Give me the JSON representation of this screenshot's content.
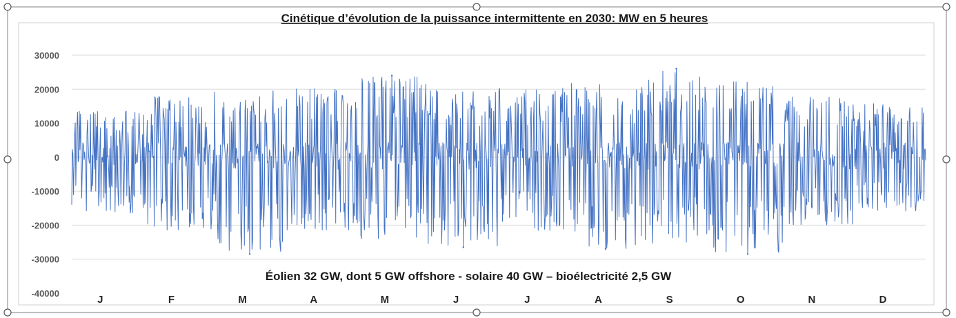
{
  "chart_data": {
    "type": "line",
    "title": "Cinétique d’évolution de la puissance intermittente en 2030: MW en 5 heures",
    "caption": "Éolien 32 GW, dont 5 GW offshore - solaire 40 GW – bioélectricité 2,5 GW",
    "xlabel": "",
    "ylabel": "",
    "ylim": [
      -40000,
      30000
    ],
    "y_ticks": [
      "30000",
      "20000",
      "10000",
      "0",
      "-10000",
      "-20000",
      "-30000",
      "-40000"
    ],
    "y_tick_values": [
      30000,
      20000,
      10000,
      0,
      -10000,
      -20000,
      -30000,
      -40000
    ],
    "categories": [
      "J",
      "F",
      "M",
      "A",
      "M",
      "J",
      "J",
      "A",
      "S",
      "O",
      "N",
      "D"
    ],
    "grid": true,
    "legend": "none",
    "series_color": "#4472c4",
    "series": [
      {
        "monthly_envelope": {
          "max": [
            14000,
            18500,
            20500,
            20500,
            24000,
            20000,
            20500,
            22000,
            26000,
            22500,
            18000,
            16000
          ],
          "min": [
            -17000,
            -22500,
            -28500,
            -22000,
            -25000,
            -26500,
            -22000,
            -27000,
            -26000,
            -28500,
            -20000,
            -16000
          ]
        }
      }
    ],
    "notable_points": [
      {
        "month": "M",
        "y": 24000
      },
      {
        "month": "S",
        "y": 26000
      },
      {
        "month": "M",
        "y": -28500
      },
      {
        "month": "O",
        "y": -28500
      },
      {
        "month": "J",
        "y": -26500
      },
      {
        "month": "A",
        "y": -27000
      }
    ]
  }
}
